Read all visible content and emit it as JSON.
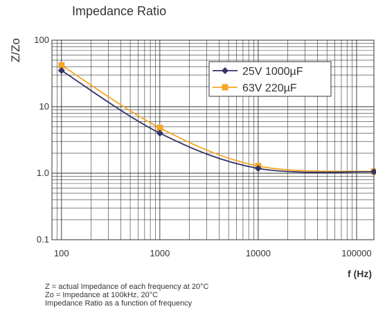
{
  "chart_data": {
    "type": "line",
    "title": "Impedance Ratio",
    "ylabel": "Z/Zo",
    "xlabel": "f (Hz)",
    "xscale": "log",
    "yscale": "log",
    "xlim": [
      80,
      150000
    ],
    "ylim": [
      0.1,
      100
    ],
    "x_ticks": [
      "100",
      "1000",
      "10000",
      "100000"
    ],
    "y_ticks": [
      "100",
      "10",
      "1.0",
      "0.1"
    ],
    "grid": true,
    "legend_position": "top-right",
    "series": [
      {
        "name": "25V 1000µF",
        "color": "#333366",
        "marker": "diamond",
        "x": [
          100,
          1000,
          10000,
          150000
        ],
        "y": [
          35,
          4,
          1.18,
          1.05
        ]
      },
      {
        "name": "63V 220µF",
        "color": "#F5A623",
        "marker": "square",
        "x": [
          100,
          1000,
          10000,
          150000
        ],
        "y": [
          42,
          4.8,
          1.28,
          1.06
        ]
      }
    ]
  },
  "notes": [
    "Z = actual Impedance of each frequency at 20°C",
    "Zo = Impedance at 100kHz, 20°C",
    "Impedance Ratio as a function of frequency"
  ]
}
